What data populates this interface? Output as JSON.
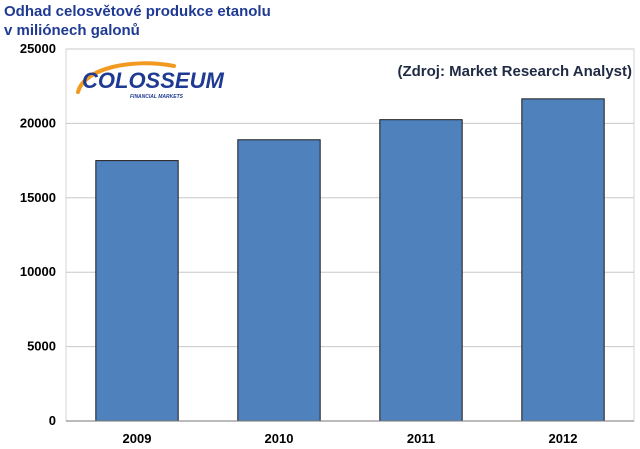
{
  "header": {
    "title_line1": "Odhad celosvětové produkce etanolu",
    "title_line2": "v miliónech galonů"
  },
  "source_note": "(Zdroj: Market Research Analyst)",
  "logo": {
    "name": "COLOSSEUM",
    "tagline": "FINANCIAL MARKETS"
  },
  "colors": {
    "bar": "#4f81bd",
    "bar_border": "#1a1a1a",
    "title": "#1f3a93",
    "logo_blue": "#1f3a93",
    "logo_orange": "#f29a1f",
    "grid": "#c8c8c8"
  },
  "chart_data": {
    "type": "bar",
    "categories": [
      "2009",
      "2010",
      "2011",
      "2012"
    ],
    "values": [
      17500,
      18900,
      20250,
      21650
    ],
    "title": "Odhad celosvětové produkce etanolu v miliónech galonů",
    "xlabel": "",
    "ylabel": "",
    "ylim": [
      0,
      25000
    ],
    "yticks": [
      0,
      5000,
      10000,
      15000,
      20000,
      25000
    ],
    "grid": true,
    "legend": "none"
  }
}
